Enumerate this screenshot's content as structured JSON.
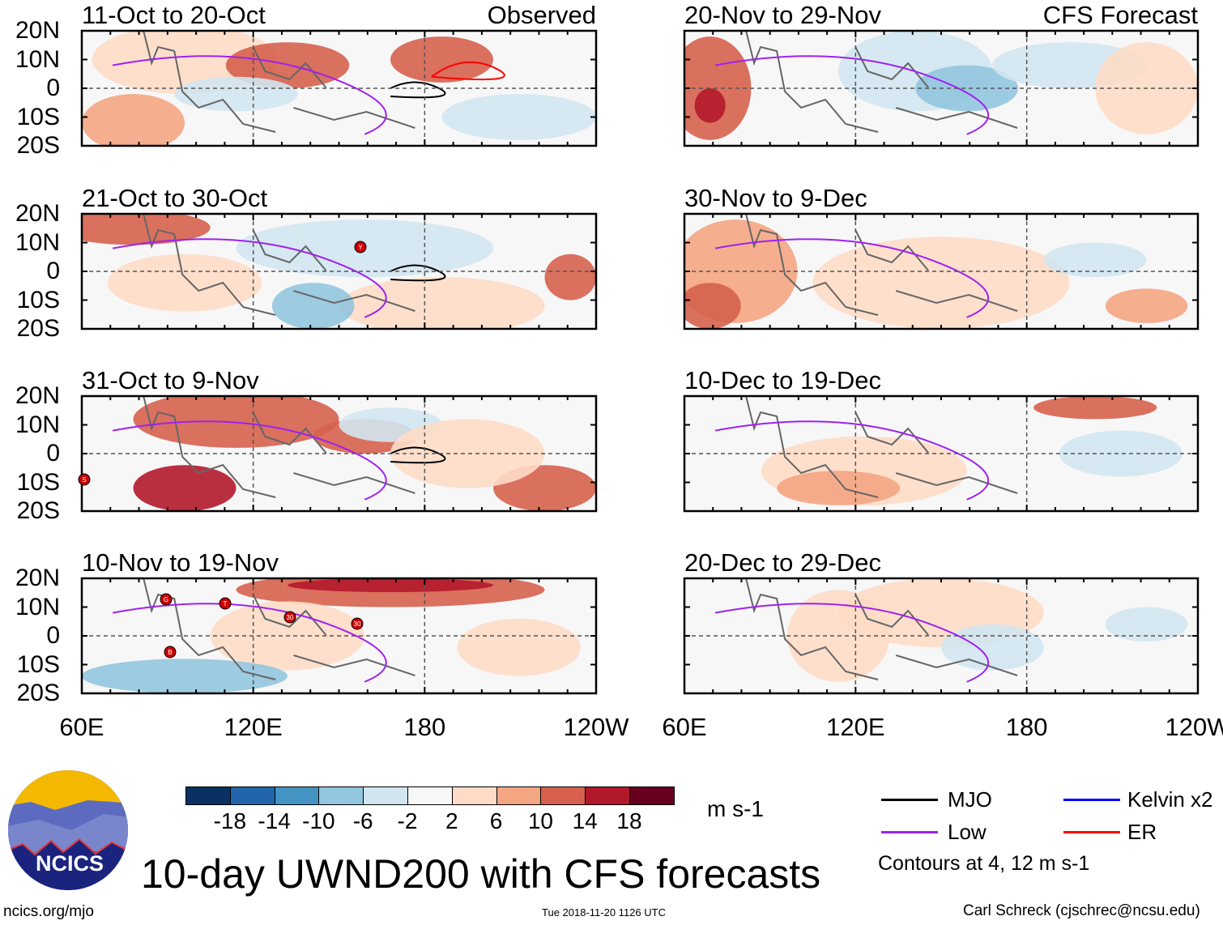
{
  "panels": {
    "left": [
      {
        "title": "11-Oct to 20-Oct",
        "tag": "Observed"
      },
      {
        "title": "21-Oct to 30-Oct",
        "tag": ""
      },
      {
        "title": "31-Oct to 9-Nov",
        "tag": ""
      },
      {
        "title": "10-Nov to 19-Nov",
        "tag": ""
      }
    ],
    "right": [
      {
        "title": "20-Nov to 29-Nov",
        "tag": "CFS Forecast"
      },
      {
        "title": "30-Nov to 9-Dec",
        "tag": ""
      },
      {
        "title": "10-Dec to 19-Dec",
        "tag": ""
      },
      {
        "title": "20-Dec to 29-Dec",
        "tag": ""
      }
    ]
  },
  "lat_labels": [
    "20N",
    "10N",
    "0",
    "10S",
    "20S"
  ],
  "lon_labels": [
    "60E",
    "120E",
    "180",
    "120W"
  ],
  "storms": [
    {
      "panel": "left-1",
      "label": "Y"
    },
    {
      "panel": "left-2",
      "label": "S"
    },
    {
      "panel": "left-3",
      "label": "G"
    },
    {
      "panel": "left-3",
      "label": "T"
    },
    {
      "panel": "left-3",
      "label": "30"
    },
    {
      "panel": "left-3",
      "label": "30"
    },
    {
      "panel": "left-3",
      "label": "B"
    }
  ],
  "chart_data": {
    "type": "heatmap",
    "title": "10-day UWND200 with CFS forecasts",
    "variable": "200-hPa zonal wind anomaly",
    "units": "m s-1",
    "colorbar": {
      "ticks": [
        "-18",
        "-14",
        "-10",
        "-6",
        "-2",
        "2",
        "6",
        "10",
        "14",
        "18"
      ],
      "colors": [
        "#0a3161",
        "#2166ac",
        "#4393c3",
        "#92c5de",
        "#d1e5f0",
        "#f7f7f7",
        "#fddbc7",
        "#f4a582",
        "#d6604d",
        "#b2182b",
        "#67001f"
      ]
    },
    "xrange": [
      "60E",
      "120W"
    ],
    "yrange": [
      "20S",
      "20N"
    ],
    "legend": [
      {
        "name": "MJO",
        "color": "#000000"
      },
      {
        "name": "Kelvin x2",
        "color": "#0000ff"
      },
      {
        "name": "Low",
        "color": "#a020f0"
      },
      {
        "name": "ER",
        "color": "#ff0000"
      }
    ],
    "contour_note": "Contours at 4, 12 m s-1"
  },
  "footer": {
    "url": "ncics.org/mjo",
    "timestamp": "Tue 2018-11-20 1126 UTC",
    "author": "Carl Schreck (cjschrec@ncsu.edu)",
    "logo_text": "NCICS"
  }
}
